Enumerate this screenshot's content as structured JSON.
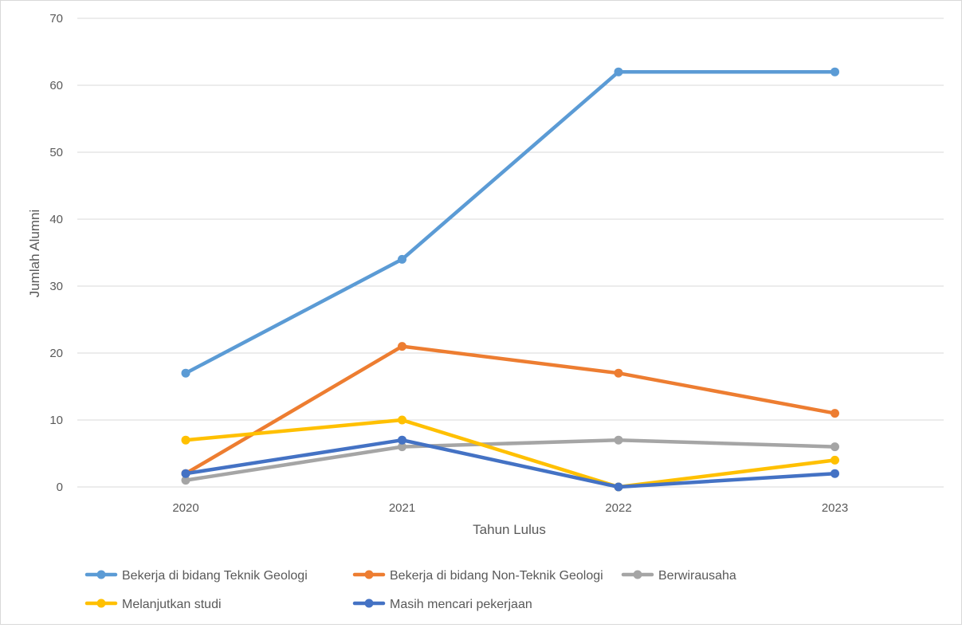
{
  "chart_data": {
    "type": "line",
    "title": "",
    "xlabel": "Tahun Lulus",
    "ylabel": "Jumlah Alumni",
    "categories": [
      "2020",
      "2021",
      "2022",
      "2023"
    ],
    "ylim": [
      0,
      70
    ],
    "yticks": [
      0,
      10,
      20,
      30,
      40,
      50,
      60,
      70
    ],
    "grid": true,
    "legend_position": "bottom",
    "series": [
      {
        "name": "Bekerja di bidang Teknik Geologi",
        "color": "#5b9bd5",
        "values": [
          17,
          34,
          62,
          62
        ]
      },
      {
        "name": "Bekerja di bidang Non-Teknik Geologi",
        "color": "#ed7d31",
        "values": [
          2,
          21,
          17,
          11
        ]
      },
      {
        "name": "Berwirausaha",
        "color": "#a5a5a5",
        "values": [
          1,
          6,
          7,
          6
        ]
      },
      {
        "name": "Melanjutkan studi",
        "color": "#ffc000",
        "values": [
          7,
          10,
          0,
          4
        ]
      },
      {
        "name": "Masih mencari pekerjaan",
        "color": "#4472c4",
        "values": [
          2,
          7,
          0,
          2
        ]
      }
    ]
  }
}
